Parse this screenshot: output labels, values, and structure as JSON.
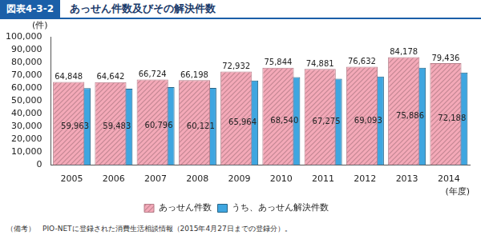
{
  "header": {
    "label": "図表4-3-2"
  },
  "chart_data": {
    "type": "bar",
    "title": "あっせん件数及びその解決件数",
    "y_label": "(件)",
    "x_label": "(年度)",
    "categories": [
      "2005",
      "2006",
      "2007",
      "2008",
      "2009",
      "2010",
      "2011",
      "2012",
      "2013",
      "2014"
    ],
    "series": [
      {
        "name": "あっせん件数",
        "color": "#f4a9b8",
        "values": [
          64848,
          64642,
          66724,
          66198,
          72932,
          75844,
          74881,
          76632,
          84178,
          79436
        ],
        "value_labels": [
          "64,848",
          "64,642",
          "66,724",
          "66,198",
          "72,932",
          "75,844",
          "74,881",
          "76,632",
          "84,178",
          "79,436"
        ]
      },
      {
        "name": "うち、あっせん解決件数",
        "color": "#3fa6e0",
        "values": [
          59963,
          59483,
          60796,
          60121,
          65964,
          68540,
          67275,
          69093,
          75886,
          72188
        ],
        "value_labels": [
          "59,963",
          "59,483",
          "60,796",
          "60,121",
          "65,964",
          "68,540",
          "67,275",
          "69,093",
          "75,886",
          "72,188"
        ]
      }
    ],
    "ylim": [
      0,
      100000
    ],
    "yticks": [
      0,
      {
        "value": 10000,
        "label": "10,000"
      },
      {
        "value": 20000,
        "label": "20,000"
      },
      {
        "value": 30000,
        "label": "30,000"
      },
      {
        "value": 40000,
        "label": "40,000"
      },
      {
        "value": 50000,
        "label": "50,000"
      },
      {
        "value": 60000,
        "label": "60,000"
      },
      {
        "value": 70000,
        "label": "70,000"
      },
      {
        "value": 80000,
        "label": "80,000"
      },
      {
        "value": 90000,
        "label": "90,000"
      },
      {
        "value": 100000,
        "label": "100,000"
      }
    ],
    "grid": false,
    "legend": "bottom",
    "data_labels": true
  },
  "note": "（備考）　PIO-NETに登録された消費生活相談情報（2015年4月27日までの登録分）。"
}
